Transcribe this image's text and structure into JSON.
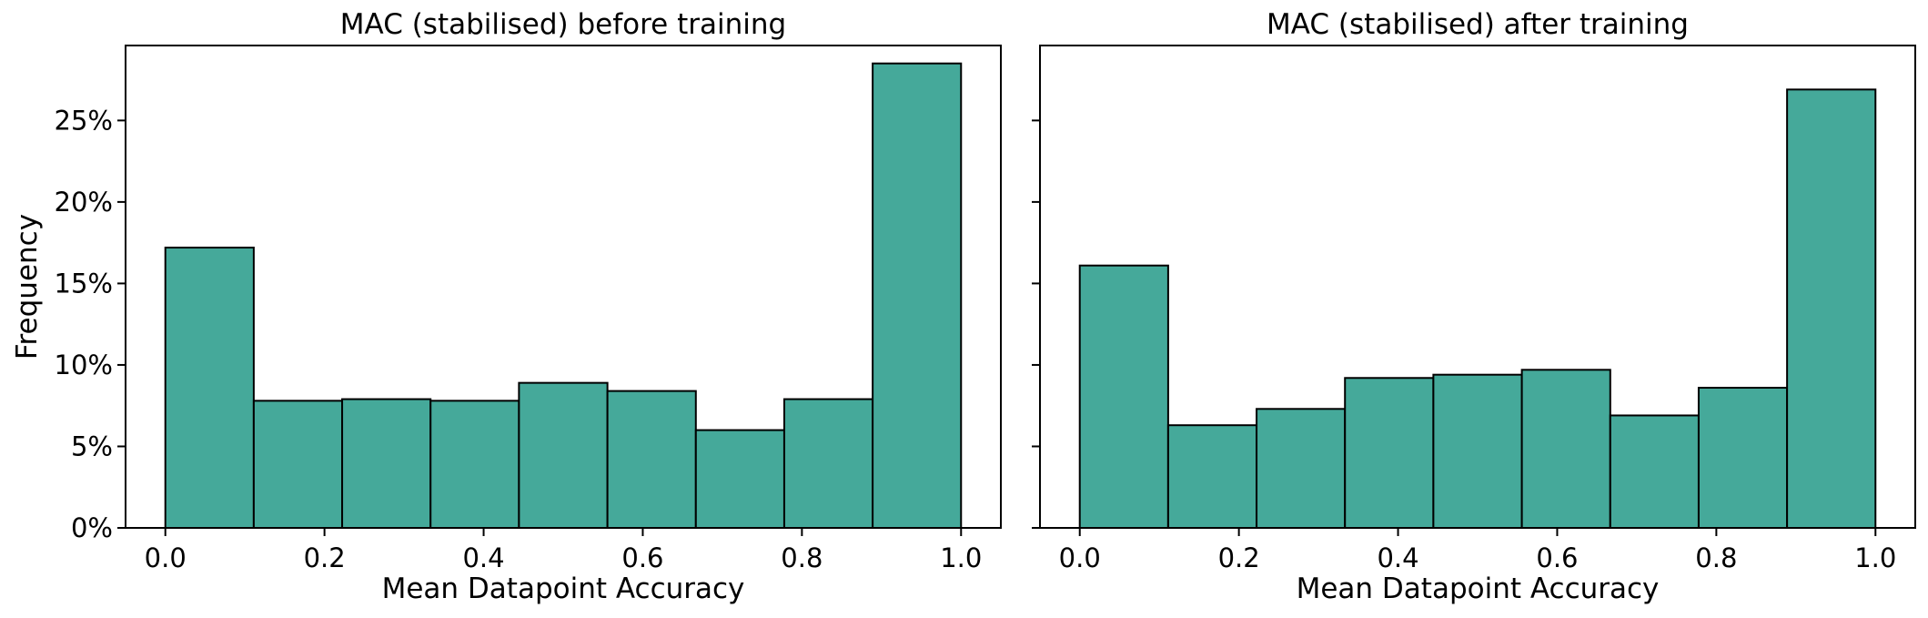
{
  "chart_data": [
    {
      "type": "bar",
      "title": "MAC (stabilised) before training",
      "xlabel": "Mean Datapoint Accuracy",
      "ylabel": "Frequency",
      "bin_edges": [
        0.0,
        0.1111,
        0.2222,
        0.3333,
        0.4444,
        0.5556,
        0.6667,
        0.7778,
        0.8889,
        1.0
      ],
      "values": [
        17.2,
        7.8,
        7.9,
        7.8,
        8.9,
        8.4,
        6.0,
        7.9,
        28.5
      ],
      "xlim": [
        -0.05,
        1.05
      ],
      "ylim": [
        0,
        29.6
      ],
      "xticks": [
        0.0,
        0.2,
        0.4,
        0.6,
        0.8,
        1.0
      ],
      "xtick_labels": [
        "0.0",
        "0.2",
        "0.4",
        "0.6",
        "0.8",
        "1.0"
      ],
      "yticks": [
        0,
        5,
        10,
        15,
        20,
        25
      ],
      "ytick_labels": [
        "0%",
        "5%",
        "10%",
        "15%",
        "20%",
        "25%"
      ],
      "bar_color": "#45a99a",
      "grid": false
    },
    {
      "type": "bar",
      "title": "MAC (stabilised) after training",
      "xlabel": "Mean Datapoint Accuracy",
      "ylabel": "",
      "bin_edges": [
        0.0,
        0.1111,
        0.2222,
        0.3333,
        0.4444,
        0.5556,
        0.6667,
        0.7778,
        0.8889,
        1.0
      ],
      "values": [
        16.1,
        6.3,
        7.3,
        9.2,
        9.4,
        9.7,
        6.9,
        8.6,
        26.9
      ],
      "xlim": [
        -0.05,
        1.05
      ],
      "ylim": [
        0,
        29.6
      ],
      "xticks": [
        0.0,
        0.2,
        0.4,
        0.6,
        0.8,
        1.0
      ],
      "xtick_labels": [
        "0.0",
        "0.2",
        "0.4",
        "0.6",
        "0.8",
        "1.0"
      ],
      "yticks": [
        0,
        5,
        10,
        15,
        20,
        25
      ],
      "ytick_labels": [],
      "bar_color": "#45a99a",
      "grid": false
    }
  ]
}
